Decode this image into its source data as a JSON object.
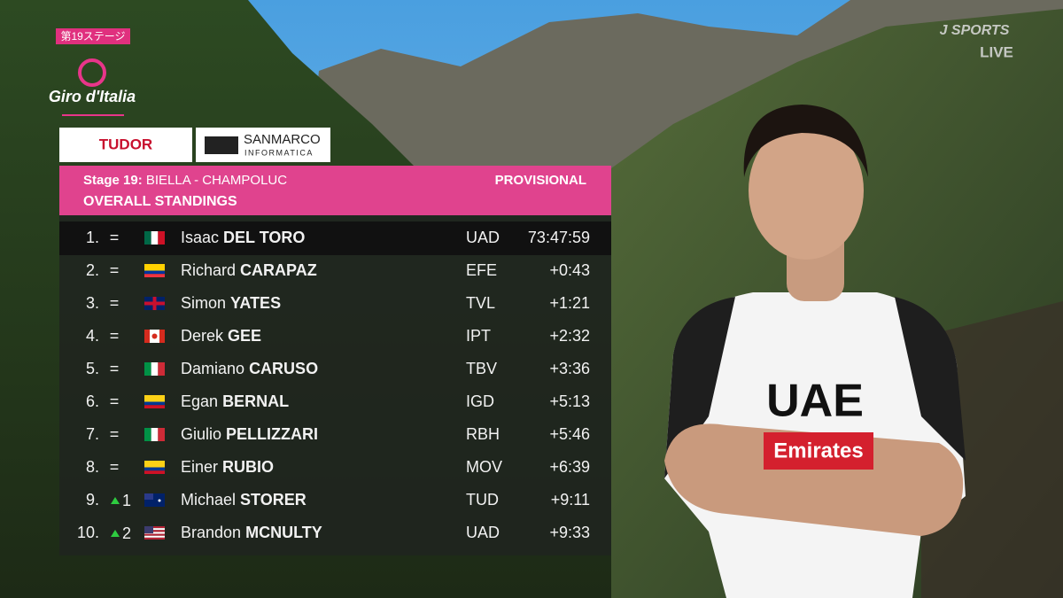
{
  "stage_tag": "第19ステージ",
  "race_logo": "Giro d'Italia",
  "sponsors": [
    "TUDOR",
    "SANMARCO",
    "INFORMATICA"
  ],
  "broadcaster": {
    "name": "J SPORTS",
    "status": "LIVE"
  },
  "header": {
    "stage": "Stage 19:",
    "route": "BIELLA - CHAMPOLUC",
    "status": "PROVISIONAL",
    "title": "OVERALL STANDINGS"
  },
  "standings": [
    {
      "rank": "1.",
      "change": "=",
      "first": "Isaac",
      "last": "DEL TORO",
      "team": "UAD",
      "time": "73:47:59"
    },
    {
      "rank": "2.",
      "change": "=",
      "first": "Richard",
      "last": "CARAPAZ",
      "team": "EFE",
      "time": "+0:43"
    },
    {
      "rank": "3.",
      "change": "=",
      "first": "Simon",
      "last": "YATES",
      "team": "TVL",
      "time": "+1:21"
    },
    {
      "rank": "4.",
      "change": "=",
      "first": "Derek",
      "last": "GEE",
      "team": "IPT",
      "time": "+2:32"
    },
    {
      "rank": "5.",
      "change": "=",
      "first": "Damiano",
      "last": "CARUSO",
      "team": "TBV",
      "time": "+3:36"
    },
    {
      "rank": "6.",
      "change": "=",
      "first": "Egan",
      "last": "BERNAL",
      "team": "IGD",
      "time": "+5:13"
    },
    {
      "rank": "7.",
      "change": "=",
      "first": "Giulio",
      "last": "PELLIZZARI",
      "team": "RBH",
      "time": "+5:46"
    },
    {
      "rank": "8.",
      "change": "=",
      "first": "Einer",
      "last": "RUBIO",
      "team": "MOV",
      "time": "+6:39"
    },
    {
      "rank": "9.",
      "change": "1",
      "first": "Michael",
      "last": "STORER",
      "team": "TUD",
      "time": "+9:11"
    },
    {
      "rank": "10.",
      "change": "2",
      "first": "Brandon",
      "last": "MCNULTY",
      "team": "UAD",
      "time": "+9:33"
    }
  ],
  "jersey": [
    "UAE",
    "Emirates"
  ]
}
